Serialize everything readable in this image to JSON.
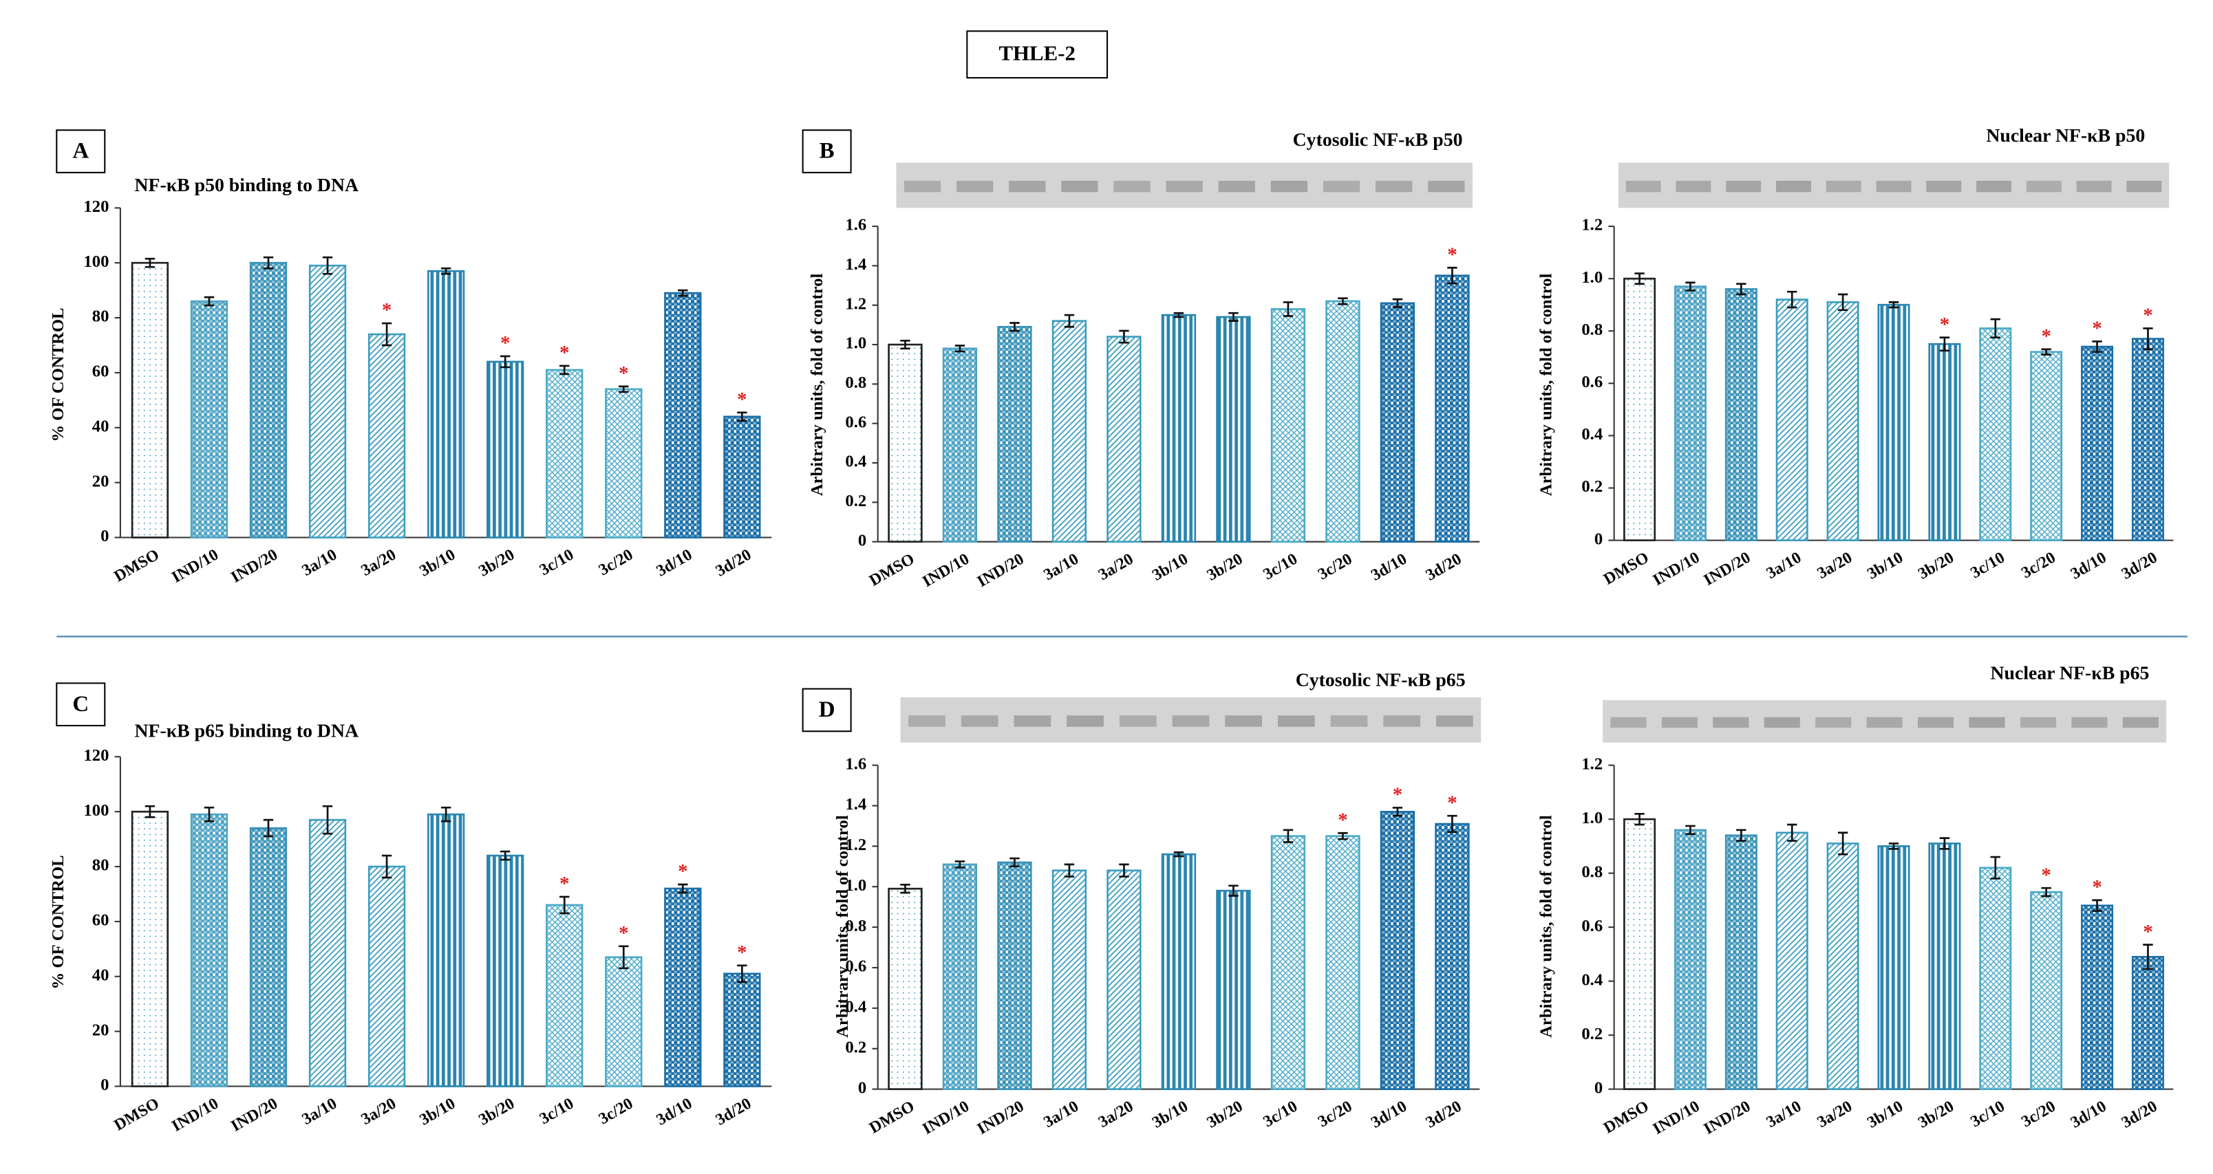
{
  "figure_title": "THLE-2",
  "chart_data": [
    {
      "type": "bar",
      "panel": "A",
      "title": "NF-κB p50 binding to DNA",
      "ylabel": "% OF CONTROL",
      "categories": [
        "DMSO",
        "IND/10",
        "IND/20",
        "3a/10",
        "3a/20",
        "3b/10",
        "3b/20",
        "3c/10",
        "3c/20",
        "3d/10",
        "3d/20"
      ],
      "values": [
        100,
        86,
        100,
        99,
        74,
        97,
        64,
        61,
        54,
        89,
        44
      ],
      "errors": [
        1.5,
        1.5,
        2,
        3,
        4,
        1,
        2,
        1.5,
        1,
        1,
        1.5
      ],
      "significance": [
        null,
        null,
        null,
        null,
        "*",
        null,
        "*",
        "*",
        "*",
        null,
        "*"
      ],
      "ylim": [
        0,
        120
      ],
      "yticks": [
        0,
        20,
        40,
        60,
        80,
        100,
        120
      ],
      "colors": [
        "#3a9ab8",
        "#4ea3c4",
        "#3b93b8",
        "#3d9ec0",
        "#3d9ec0",
        "#2a86b0",
        "#2a86b0",
        "#4aaac8",
        "#4aaac8",
        "#1a6fa8",
        "#1a6fa8"
      ],
      "patterns": [
        "dots",
        "checker",
        "checker",
        "diagonal",
        "diagonal",
        "vertical",
        "vertical",
        "crosshatch",
        "crosshatch",
        "checker",
        "checker"
      ]
    },
    {
      "type": "bar",
      "panel": "B",
      "title": "Cytosolic NF-κB p50",
      "ylabel": "Arbitrary units, fold of control",
      "categories": [
        "DMSO",
        "IND/10",
        "IND/20",
        "3a/10",
        "3a/20",
        "3b/10",
        "3b/20",
        "3c/10",
        "3c/20",
        "3d/10",
        "3d/20"
      ],
      "values": [
        1.0,
        0.98,
        1.09,
        1.12,
        1.04,
        1.15,
        1.14,
        1.18,
        1.22,
        1.21,
        1.35
      ],
      "errors": [
        0.02,
        0.015,
        0.02,
        0.03,
        0.03,
        0.01,
        0.02,
        0.035,
        0.015,
        0.02,
        0.04
      ],
      "significance": [
        null,
        null,
        null,
        null,
        null,
        null,
        null,
        null,
        null,
        null,
        "*"
      ],
      "ylim": [
        0,
        1.6
      ],
      "yticks": [
        0,
        0.2,
        0.4,
        0.6,
        0.8,
        {
          "value": 1,
          "label": "1.0"
        },
        1.2,
        1.4,
        1.6
      ],
      "colors": [
        "#3a9ab8",
        "#4ea3c4",
        "#3b93b8",
        "#3d9ec0",
        "#3d9ec0",
        "#2a86b0",
        "#2a86b0",
        "#4aaac8",
        "#4aaac8",
        "#1a6fa8",
        "#1a6fa8"
      ],
      "patterns": [
        "dots",
        "checker",
        "checker",
        "diagonal",
        "diagonal",
        "vertical",
        "vertical",
        "crosshatch",
        "crosshatch",
        "checker",
        "checker"
      ]
    },
    {
      "type": "bar",
      "title": "Nuclear  NF-κB p50",
      "ylabel": "Arbitrary units, fold of control",
      "categories": [
        "DMSO",
        "IND/10",
        "IND/20",
        "3a/10",
        "3a/20",
        "3b/10",
        "3b/20",
        "3c/10",
        "3c/20",
        "3d/10",
        "3d/20"
      ],
      "values": [
        1.0,
        0.97,
        0.96,
        0.92,
        0.91,
        0.9,
        0.75,
        0.81,
        0.72,
        0.74,
        0.77
      ],
      "errors": [
        0.02,
        0.015,
        0.02,
        0.03,
        0.03,
        0.01,
        0.025,
        0.035,
        0.01,
        0.02,
        0.04
      ],
      "significance": [
        null,
        null,
        null,
        null,
        null,
        null,
        "*",
        null,
        "*",
        "*",
        "*"
      ],
      "ylim": [
        0,
        1.2
      ],
      "yticks": [
        0,
        0.2,
        0.4,
        0.6,
        0.8,
        {
          "value": 1,
          "label": "1.0"
        },
        1.2
      ],
      "colors": [
        "#3a9ab8",
        "#4ea3c4",
        "#3b93b8",
        "#3d9ec0",
        "#3d9ec0",
        "#2a86b0",
        "#2a86b0",
        "#4aaac8",
        "#4aaac8",
        "#1a6fa8",
        "#1a6fa8"
      ],
      "patterns": [
        "dots",
        "checker",
        "checker",
        "diagonal",
        "diagonal",
        "vertical",
        "vertical",
        "crosshatch",
        "crosshatch",
        "checker",
        "checker"
      ]
    },
    {
      "type": "bar",
      "panel": "C",
      "title": "NF-κB p65 binding to DNA",
      "ylabel": "% OF CONTROL",
      "categories": [
        "DMSO",
        "IND/10",
        "IND/20",
        "3a/10",
        "3a/20",
        "3b/10",
        "3b/20",
        "3c/10",
        "3c/20",
        "3d/10",
        "3d/20"
      ],
      "values": [
        100,
        99,
        94,
        97,
        80,
        99,
        84,
        66,
        47,
        72,
        41
      ],
      "errors": [
        2,
        2.5,
        3,
        5,
        4,
        2.5,
        1.5,
        3,
        4,
        1.5,
        3
      ],
      "significance": [
        null,
        null,
        null,
        null,
        null,
        null,
        null,
        "*",
        "*",
        "*",
        "*"
      ],
      "ylim": [
        0,
        120
      ],
      "yticks": [
        0,
        20,
        40,
        60,
        80,
        100,
        120
      ],
      "colors": [
        "#3a9ab8",
        "#4ea3c4",
        "#3b93b8",
        "#3d9ec0",
        "#3d9ec0",
        "#2a86b0",
        "#2a86b0",
        "#4aaac8",
        "#4aaac8",
        "#1a6fa8",
        "#1a6fa8"
      ],
      "patterns": [
        "dots",
        "checker",
        "checker",
        "diagonal",
        "diagonal",
        "vertical",
        "vertical",
        "crosshatch",
        "crosshatch",
        "checker",
        "checker"
      ]
    },
    {
      "type": "bar",
      "panel": "D",
      "title": "Cytosolic  NF-κB p65",
      "ylabel": "Arbitrary units, fold of control",
      "categories": [
        "DMSO",
        "IND/10",
        "IND/20",
        "3a/10",
        "3a/20",
        "3b/10",
        "3b/20",
        "3c/10",
        "3c/20",
        "3d/10",
        "3d/20"
      ],
      "values": [
        0.99,
        1.11,
        1.12,
        1.08,
        1.08,
        1.16,
        0.98,
        1.25,
        1.25,
        1.37,
        1.31
      ],
      "errors": [
        0.02,
        0.015,
        0.02,
        0.03,
        0.03,
        0.01,
        0.025,
        0.03,
        0.015,
        0.02,
        0.04
      ],
      "significance": [
        null,
        null,
        null,
        null,
        null,
        null,
        null,
        null,
        "*",
        "*",
        "*"
      ],
      "ylim": [
        0,
        1.6
      ],
      "yticks": [
        0,
        0.2,
        0.4,
        0.6,
        0.8,
        {
          "value": 1,
          "label": "1.0"
        },
        1.2,
        1.4,
        1.6
      ],
      "colors": [
        "#3a9ab8",
        "#4ea3c4",
        "#3b93b8",
        "#3d9ec0",
        "#3d9ec0",
        "#2a86b0",
        "#2a86b0",
        "#4aaac8",
        "#4aaac8",
        "#1a6fa8",
        "#1a6fa8"
      ],
      "patterns": [
        "dots",
        "checker",
        "checker",
        "diagonal",
        "diagonal",
        "vertical",
        "vertical",
        "crosshatch",
        "crosshatch",
        "checker",
        "checker"
      ]
    },
    {
      "type": "bar",
      "title": "Nuclear  NF-κB p65",
      "ylabel": "Arbitrary units, fold of control",
      "categories": [
        "DMSO",
        "IND/10",
        "IND/20",
        "3a/10",
        "3a/20",
        "3b/10",
        "3b/20",
        "3c/10",
        "3c/20",
        "3d/10",
        "3d/20"
      ],
      "values": [
        1.0,
        0.96,
        0.94,
        0.95,
        0.91,
        0.9,
        0.91,
        0.82,
        0.73,
        0.68,
        0.49
      ],
      "errors": [
        0.02,
        0.015,
        0.02,
        0.03,
        0.04,
        0.01,
        0.02,
        0.04,
        0.015,
        0.02,
        0.045
      ],
      "significance": [
        null,
        null,
        null,
        null,
        null,
        null,
        null,
        null,
        "*",
        "*",
        "*"
      ],
      "ylim": [
        0,
        1.2
      ],
      "yticks": [
        0,
        0.2,
        0.4,
        0.6,
        0.8,
        {
          "value": 1,
          "label": "1.0"
        },
        1.2
      ],
      "colors": [
        "#3a9ab8",
        "#4ea3c4",
        "#3b93b8",
        "#3d9ec0",
        "#3d9ec0",
        "#2a86b0",
        "#2a86b0",
        "#4aaac8",
        "#4aaac8",
        "#1a6fa8",
        "#1a6fa8"
      ],
      "patterns": [
        "dots",
        "checker",
        "checker",
        "diagonal",
        "diagonal",
        "vertical",
        "vertical",
        "crosshatch",
        "crosshatch",
        "checker",
        "checker"
      ]
    }
  ]
}
